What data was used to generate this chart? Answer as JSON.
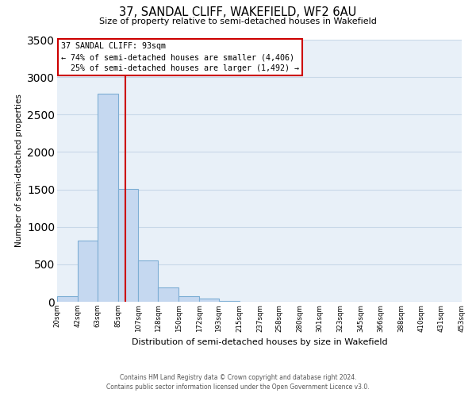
{
  "title": "37, SANDAL CLIFF, WAKEFIELD, WF2 6AU",
  "subtitle": "Size of property relative to semi-detached houses in Wakefield",
  "bin_edges": [
    20,
    42,
    63,
    85,
    107,
    128,
    150,
    172,
    193,
    215,
    237,
    258,
    280,
    301,
    323,
    345,
    366,
    388,
    410,
    431,
    453
  ],
  "bar_heights": [
    75,
    820,
    2775,
    1510,
    555,
    195,
    70,
    40,
    15,
    0,
    0,
    0,
    0,
    0,
    0,
    0,
    0,
    0,
    0,
    0
  ],
  "bar_color": "#c5d8f0",
  "bar_edge_color": "#7daed4",
  "x_tick_labels": [
    "20sqm",
    "42sqm",
    "63sqm",
    "85sqm",
    "107sqm",
    "128sqm",
    "150sqm",
    "172sqm",
    "193sqm",
    "215sqm",
    "237sqm",
    "258sqm",
    "280sqm",
    "301sqm",
    "323sqm",
    "345sqm",
    "366sqm",
    "388sqm",
    "410sqm",
    "431sqm",
    "453sqm"
  ],
  "ylabel": "Number of semi-detached properties",
  "xlabel": "Distribution of semi-detached houses by size in Wakefield",
  "ylim": [
    0,
    3500
  ],
  "yticks": [
    0,
    500,
    1000,
    1500,
    2000,
    2500,
    3000,
    3500
  ],
  "property_size": 93,
  "property_label": "37 SANDAL CLIFF: 93sqm",
  "pct_smaller": 74,
  "count_smaller": "4,406",
  "pct_larger": 25,
  "count_larger": "1,492",
  "vline_color": "#cc0000",
  "annotation_box_edge_color": "#cc0000",
  "grid_color": "#c8d8e8",
  "background_color": "#e8f0f8",
  "footer_line1": "Contains HM Land Registry data © Crown copyright and database right 2024.",
  "footer_line2": "Contains public sector information licensed under the Open Government Licence v3.0."
}
